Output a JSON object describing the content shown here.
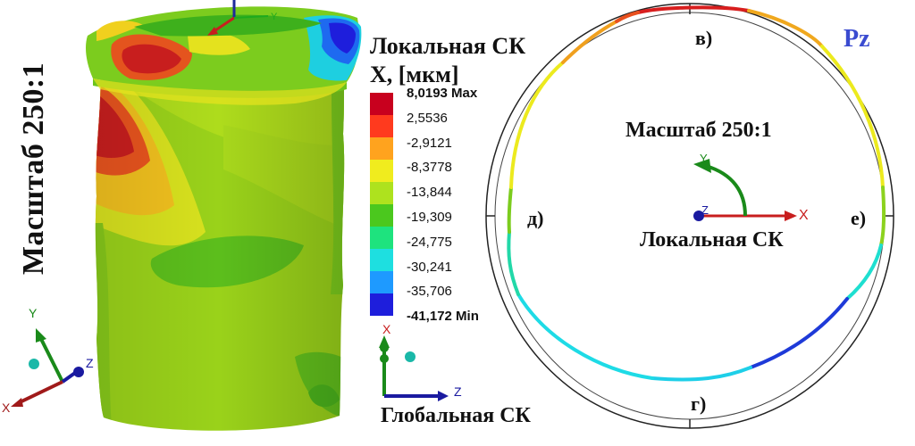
{
  "left_view": {
    "scale_label": "Масштаб 250:1"
  },
  "legend": {
    "title_line1": "Локальная СК",
    "title_line2": "X, [мкм]",
    "entries": [
      {
        "value": "8,0193 Max",
        "color": "#c8001e"
      },
      {
        "value": "2,5536",
        "color": "#ff3a1e"
      },
      {
        "value": "-2,9121",
        "color": "#ffa31e"
      },
      {
        "value": "-8,3778",
        "color": "#f0ec1e"
      },
      {
        "value": "-13,844",
        "color": "#aee21e"
      },
      {
        "value": "-19,309",
        "color": "#4bc81e"
      },
      {
        "value": "-24,775",
        "color": "#1ee37e"
      },
      {
        "value": "-30,241",
        "color": "#1edfe0"
      },
      {
        "value": "-35,706",
        "color": "#1e9aff"
      },
      {
        "value": "-41,172 Min",
        "color": "#1e1edc"
      }
    ]
  },
  "global_cs": {
    "label": "Глобальная СК",
    "axis_x": "X",
    "axis_z": "Z"
  },
  "triad_left": {
    "axis_y": "Y",
    "axis_z": "Z",
    "axis_x": "X"
  },
  "right_view": {
    "label_top": "в)",
    "label_bottom": "г)",
    "label_left": "д)",
    "label_right": "е)",
    "pz": "Pz",
    "scale_label": "Масштаб 250:1",
    "local_cs": "Локальная СК",
    "axis_y": "Y",
    "axis_x": "X",
    "axis_z": "Z"
  }
}
